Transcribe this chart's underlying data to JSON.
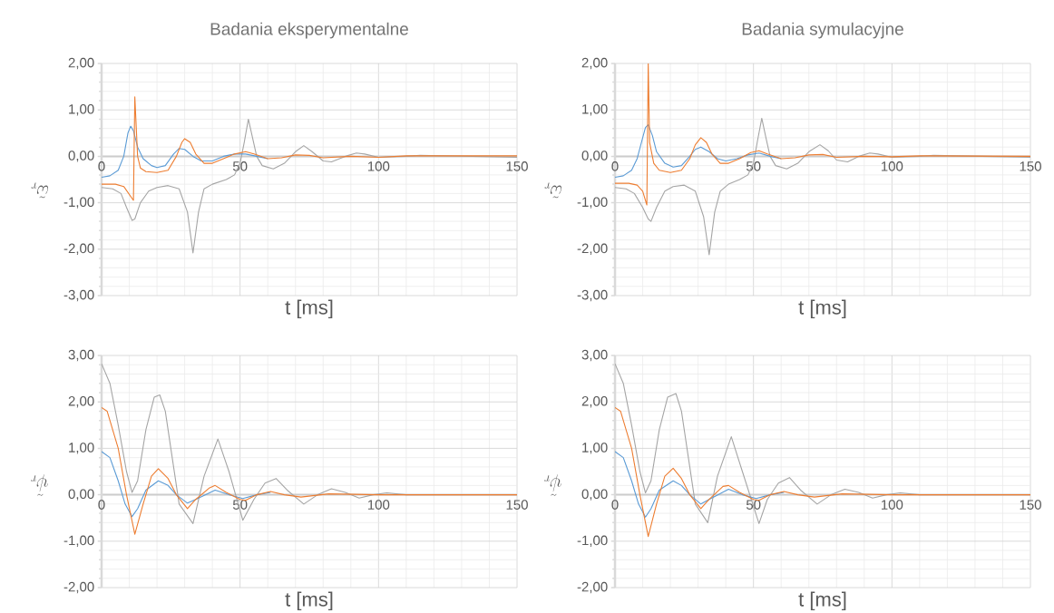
{
  "chart_data": [
    {
      "type": "line",
      "title": "Badania eksperymentalne",
      "xlabel": "t [ms]",
      "ylabel": "\\tilde{\\omega}_r",
      "xlim": [
        0,
        150
      ],
      "xticks": [
        0,
        50,
        100,
        150
      ],
      "ylim": [
        -3,
        2
      ],
      "yticks": [
        {
          "value": -3,
          "label": "-3,00"
        },
        {
          "value": -2,
          "label": "-2,00"
        },
        {
          "value": -1,
          "label": "-1,00"
        },
        {
          "value": 0,
          "label": "0,00"
        },
        {
          "value": 1,
          "label": "1,00"
        },
        {
          "value": 2,
          "label": "2,00"
        }
      ],
      "grid": true,
      "marker": "none",
      "line_style": "solid",
      "series": [
        {
          "color": "#5b9bd5",
          "x": [
            0,
            3,
            6,
            8,
            9.5,
            10.5,
            11.5,
            13,
            15,
            18,
            20,
            23,
            26,
            28,
            30,
            33,
            36,
            40,
            44,
            48,
            52,
            56,
            60
          ],
          "values": [
            -0.45,
            -0.42,
            -0.3,
            0.0,
            0.5,
            0.65,
            0.55,
            0.2,
            -0.05,
            -0.2,
            -0.24,
            -0.2,
            0.05,
            0.17,
            0.15,
            0.0,
            -0.1,
            -0.1,
            0.0,
            0.05,
            0.05,
            0.0,
            -0.05
          ]
        },
        {
          "color": "#ed7d31",
          "x": [
            0,
            5,
            8,
            11.5,
            12,
            13,
            14,
            16,
            20,
            24,
            27,
            29,
            30,
            32,
            34,
            37,
            40,
            44,
            48,
            52,
            55,
            60,
            65,
            70,
            75,
            80,
            90,
            100,
            110,
            150
          ],
          "values": [
            -0.6,
            -0.6,
            -0.65,
            -0.95,
            1.28,
            0.0,
            -0.25,
            -0.33,
            -0.35,
            -0.3,
            0.0,
            0.3,
            0.38,
            0.3,
            0.05,
            -0.15,
            -0.15,
            -0.05,
            0.05,
            0.1,
            0.05,
            -0.05,
            -0.03,
            0.03,
            0.02,
            -0.03,
            0.0,
            -0.02,
            0.01,
            0.01
          ]
        },
        {
          "color": "#a5a5a5",
          "x": [
            0,
            4,
            7,
            9,
            11,
            12,
            14,
            17,
            20,
            24,
            28,
            31,
            33,
            35,
            37,
            40,
            45,
            48,
            50,
            51.5,
            53,
            54.5,
            56,
            58,
            62,
            66,
            70,
            73,
            76,
            80,
            83,
            88,
            92,
            95,
            100,
            110,
            115,
            150
          ],
          "values": [
            -0.67,
            -0.7,
            -0.8,
            -1.1,
            -1.38,
            -1.35,
            -1.0,
            -0.75,
            -0.67,
            -0.63,
            -0.7,
            -1.2,
            -2.08,
            -1.2,
            -0.7,
            -0.6,
            -0.5,
            -0.4,
            -0.15,
            0.3,
            0.8,
            0.4,
            0.0,
            -0.2,
            -0.27,
            -0.15,
            0.1,
            0.23,
            0.1,
            -0.1,
            -0.12,
            0.0,
            0.07,
            0.05,
            -0.02,
            0.0,
            0.02,
            -0.02
          ]
        }
      ]
    },
    {
      "type": "line",
      "title": "Badania symulacyjne",
      "xlabel": "t [ms]",
      "ylabel": "\\tilde{\\omega}_r",
      "xlim": [
        0,
        150
      ],
      "xticks": [
        0,
        50,
        100,
        150
      ],
      "ylim": [
        -3,
        2
      ],
      "yticks": [
        {
          "value": -3,
          "label": "-3,00"
        },
        {
          "value": -2,
          "label": "-2,00"
        },
        {
          "value": -1,
          "label": "-1,00"
        },
        {
          "value": 0,
          "label": "0,00"
        },
        {
          "value": 1,
          "label": "1,00"
        },
        {
          "value": 2,
          "label": "2,00"
        }
      ],
      "grid": true,
      "marker": "none",
      "line_style": "solid",
      "series": [
        {
          "color": "#5b9bd5",
          "x": [
            0,
            3,
            6,
            8,
            10,
            11,
            12,
            13.5,
            15,
            18,
            21,
            24,
            27,
            29,
            31,
            34,
            37,
            40,
            44,
            48,
            52,
            56,
            60
          ],
          "values": [
            -0.45,
            -0.42,
            -0.3,
            -0.05,
            0.4,
            0.62,
            0.68,
            0.45,
            0.1,
            -0.15,
            -0.23,
            -0.2,
            0.0,
            0.15,
            0.2,
            0.1,
            -0.05,
            -0.1,
            -0.05,
            0.03,
            0.07,
            0.0,
            -0.05
          ]
        },
        {
          "color": "#ed7d31",
          "x": [
            0,
            5,
            8,
            10,
            11.5,
            12,
            12.5,
            14,
            16,
            20,
            24,
            27,
            29,
            31,
            33,
            35,
            38,
            41,
            45,
            49,
            52,
            55,
            60,
            65,
            70,
            75,
            80,
            90,
            100,
            110,
            150
          ],
          "values": [
            -0.58,
            -0.58,
            -0.62,
            -0.75,
            -1.05,
            2.0,
            0.3,
            -0.15,
            -0.3,
            -0.35,
            -0.3,
            -0.05,
            0.25,
            0.4,
            0.3,
            0.05,
            -0.15,
            -0.15,
            -0.05,
            0.08,
            0.12,
            0.05,
            -0.05,
            -0.03,
            0.03,
            0.04,
            -0.02,
            0.0,
            -0.01,
            0.01,
            0.0
          ]
        },
        {
          "color": "#a5a5a5",
          "x": [
            0,
            4,
            7,
            10,
            12,
            13,
            15,
            18,
            21,
            25,
            29,
            32,
            34,
            36,
            38,
            41,
            45,
            48,
            50,
            51.5,
            53,
            54.5,
            56,
            58,
            62,
            66,
            70,
            74,
            77,
            80,
            84,
            88,
            92,
            95,
            100,
            110,
            115,
            150
          ],
          "values": [
            -0.67,
            -0.7,
            -0.8,
            -1.1,
            -1.35,
            -1.4,
            -1.1,
            -0.75,
            -0.65,
            -0.62,
            -0.75,
            -1.3,
            -2.12,
            -1.2,
            -0.75,
            -0.6,
            -0.5,
            -0.4,
            -0.15,
            0.35,
            0.82,
            0.4,
            0.0,
            -0.2,
            -0.27,
            -0.15,
            0.1,
            0.25,
            0.12,
            -0.08,
            -0.12,
            0.0,
            0.07,
            0.05,
            -0.02,
            0.0,
            0.02,
            -0.02
          ]
        }
      ]
    },
    {
      "type": "line",
      "xlabel": "t [ms]",
      "ylabel": "\\tilde{\\psi}_r",
      "xlim": [
        0,
        150
      ],
      "xticks": [
        0,
        50,
        100,
        150
      ],
      "ylim": [
        -2,
        3
      ],
      "yticks": [
        {
          "value": -2,
          "label": "-2,00"
        },
        {
          "value": -1,
          "label": "-1,00"
        },
        {
          "value": 0,
          "label": "0,00"
        },
        {
          "value": 1,
          "label": "1,00"
        },
        {
          "value": 2,
          "label": "2,00"
        },
        {
          "value": 3,
          "label": "3,00"
        }
      ],
      "grid": true,
      "marker": "none",
      "line_style": "solid",
      "series": [
        {
          "color": "#5b9bd5",
          "x": [
            0,
            3,
            6,
            8.5,
            11,
            13,
            16,
            20.5,
            24,
            27,
            31,
            34,
            41,
            46,
            51,
            56,
            61
          ],
          "values": [
            0.93,
            0.8,
            0.3,
            -0.2,
            -0.47,
            -0.3,
            0.1,
            0.3,
            0.2,
            0.0,
            -0.18,
            -0.1,
            0.1,
            0.0,
            -0.08,
            0.0,
            0.05
          ]
        },
        {
          "color": "#ed7d31",
          "x": [
            0,
            2,
            6,
            9,
            12,
            15,
            18,
            20.5,
            24,
            27,
            31,
            34,
            39,
            41,
            45,
            50,
            52,
            56,
            61,
            66,
            72,
            82,
            100,
            150
          ],
          "values": [
            1.88,
            1.8,
            1.0,
            0.0,
            -0.85,
            -0.2,
            0.4,
            0.56,
            0.35,
            0.0,
            -0.3,
            -0.1,
            0.15,
            0.2,
            0.05,
            -0.1,
            -0.12,
            0.0,
            0.07,
            0.0,
            -0.05,
            0.02,
            0.0,
            0.0
          ]
        },
        {
          "color": "#a5a5a5",
          "x": [
            0,
            3,
            6,
            9,
            11,
            13,
            16,
            19,
            21,
            23,
            26,
            28,
            33,
            37,
            42,
            46,
            51,
            55,
            59,
            63,
            67,
            73,
            78,
            83,
            88,
            93,
            98,
            103,
            110,
            150
          ],
          "values": [
            2.82,
            2.4,
            1.5,
            0.5,
            0.05,
            0.3,
            1.4,
            2.1,
            2.15,
            1.8,
            0.6,
            -0.2,
            -0.62,
            0.4,
            1.2,
            0.5,
            -0.55,
            -0.1,
            0.25,
            0.35,
            0.1,
            -0.2,
            0.0,
            0.13,
            0.05,
            -0.07,
            0.0,
            0.04,
            0.0,
            0.0
          ]
        }
      ]
    },
    {
      "type": "line",
      "xlabel": "t [ms]",
      "ylabel": "\\tilde{\\psi}_r",
      "xlim": [
        0,
        150
      ],
      "xticks": [
        0,
        50,
        100,
        150
      ],
      "ylim": [
        -2,
        3
      ],
      "yticks": [
        {
          "value": -2,
          "label": "-2,00"
        },
        {
          "value": -1,
          "label": "-1,00"
        },
        {
          "value": 0,
          "label": "0,00"
        },
        {
          "value": 1,
          "label": "1,00"
        },
        {
          "value": 2,
          "label": "2,00"
        },
        {
          "value": 3,
          "label": "3,00"
        }
      ],
      "grid": true,
      "marker": "none",
      "line_style": "solid",
      "series": [
        {
          "color": "#5b9bd5",
          "x": [
            0,
            3,
            6,
            8.5,
            11,
            13,
            16,
            21,
            24,
            27,
            31,
            34,
            41,
            46,
            51,
            56,
            61
          ],
          "values": [
            0.93,
            0.8,
            0.3,
            -0.2,
            -0.48,
            -0.3,
            0.1,
            0.3,
            0.2,
            0.0,
            -0.2,
            -0.1,
            0.12,
            0.0,
            -0.08,
            0.0,
            0.05
          ]
        },
        {
          "color": "#ed7d31",
          "x": [
            0,
            2,
            6,
            9,
            12,
            15,
            18,
            21,
            24,
            27,
            31,
            34,
            39,
            41,
            45,
            50,
            52,
            56,
            61,
            66,
            72,
            82,
            100,
            150
          ],
          "values": [
            1.88,
            1.8,
            1.0,
            0.0,
            -0.9,
            -0.2,
            0.4,
            0.57,
            0.35,
            0.0,
            -0.3,
            -0.1,
            0.18,
            0.2,
            0.05,
            -0.1,
            -0.12,
            0.0,
            0.07,
            0.0,
            -0.05,
            0.02,
            0.0,
            0.0
          ]
        },
        {
          "color": "#a5a5a5",
          "x": [
            0,
            3,
            6,
            9,
            11,
            13,
            16,
            19,
            22,
            24,
            27,
            29,
            33.5,
            37,
            42,
            46,
            52,
            55,
            59,
            63,
            67,
            73,
            78,
            83,
            88,
            93,
            98,
            103,
            110,
            150
          ],
          "values": [
            2.82,
            2.4,
            1.5,
            0.5,
            0.04,
            0.3,
            1.4,
            2.1,
            2.18,
            1.8,
            0.6,
            -0.2,
            -0.6,
            0.4,
            1.25,
            0.5,
            -0.62,
            -0.1,
            0.25,
            0.37,
            0.1,
            -0.2,
            0.0,
            0.12,
            0.05,
            -0.07,
            0.0,
            0.04,
            0.0,
            0.0
          ]
        }
      ]
    }
  ]
}
